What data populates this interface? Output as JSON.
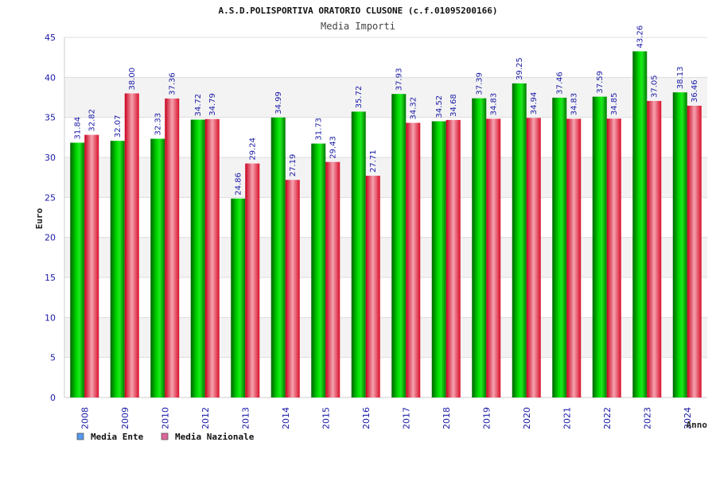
{
  "chart_data": {
    "type": "bar",
    "title": "A.S.D.POLISPORTIVA ORATORIO CLUSONE (c.f.01095200166)",
    "subtitle": "Media Importi",
    "xlabel": "Anno",
    "ylabel": "Euro",
    "ylim": [
      0,
      45
    ],
    "yticks": [
      "0",
      "5",
      "10",
      "15",
      "20",
      "25",
      "30",
      "35",
      "40",
      "45"
    ],
    "categories": [
      "2008",
      "2009",
      "2010",
      "2012",
      "2013",
      "2014",
      "2015",
      "2016",
      "2017",
      "2018",
      "2019",
      "2020",
      "2021",
      "2022",
      "2023",
      "2024"
    ],
    "series": [
      {
        "name": "Media Ente",
        "color": "#00c000",
        "legend_color": "#5599ee",
        "values": [
          31.84,
          32.07,
          32.33,
          34.72,
          24.86,
          34.99,
          31.73,
          35.72,
          37.93,
          34.52,
          37.39,
          39.25,
          37.46,
          37.59,
          43.26,
          38.13
        ],
        "labels": [
          "31.84",
          "32.07",
          "32.33",
          "34.72",
          "24.86",
          "34.99",
          "31.73",
          "35.72",
          "37.93",
          "34.52",
          "37.39",
          "39.25",
          "37.46",
          "37.59",
          "43.26",
          "38.13"
        ]
      },
      {
        "name": "Media Nazionale",
        "color": "#e8203a",
        "legend_color": "#dd6699",
        "values": [
          32.82,
          38.0,
          37.36,
          34.79,
          29.24,
          27.19,
          29.43,
          27.71,
          34.32,
          34.68,
          34.83,
          34.94,
          34.83,
          34.85,
          37.05,
          36.46
        ],
        "labels": [
          "32.82",
          "38.00",
          "37.36",
          "34.79",
          "29.24",
          "27.19",
          "29.43",
          "27.71",
          "34.32",
          "34.68",
          "34.83",
          "34.94",
          "34.83",
          "34.85",
          "37.05",
          "36.46"
        ]
      }
    ],
    "grid": true,
    "legend_position": "bottom-left"
  }
}
